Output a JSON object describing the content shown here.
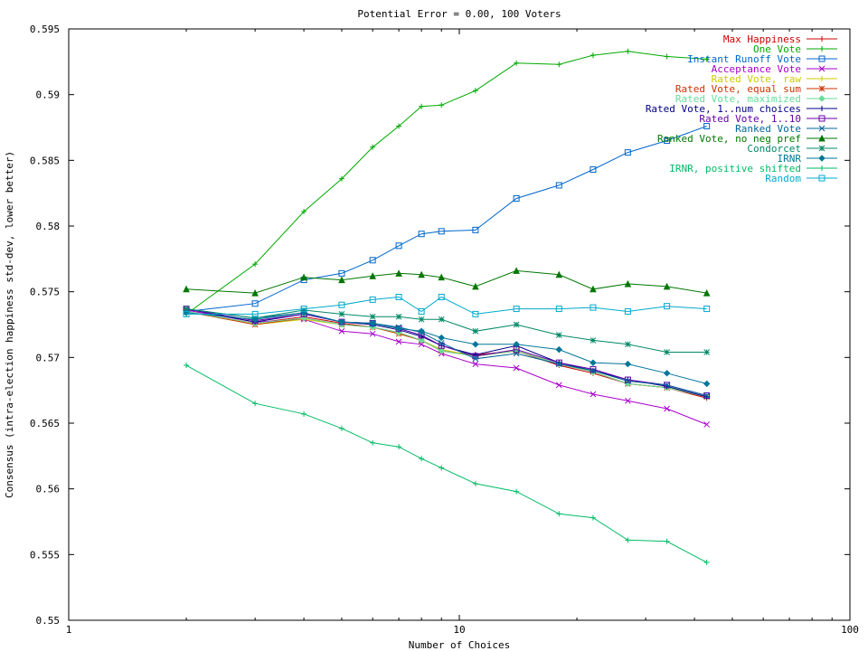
{
  "chart_data": {
    "type": "line",
    "title": "Potential Error = 0.00, 100 Voters",
    "xlabel": "Number of Choices",
    "ylabel": "Consensus (intra-election happiness std-dev, lower better)",
    "xscale": "log",
    "xlim": [
      1,
      100
    ],
    "ylim": [
      0.55,
      0.595
    ],
    "legend_position": "top-right",
    "grid": false,
    "x_ticks": [
      {
        "value": 1,
        "label": "1"
      },
      {
        "value": 10,
        "label": "10"
      },
      {
        "value": 100,
        "label": "100"
      }
    ],
    "y_ticks": [
      {
        "value": 0.55,
        "label": "0.55"
      },
      {
        "value": 0.555,
        "label": "0.555"
      },
      {
        "value": 0.56,
        "label": "0.56"
      },
      {
        "value": 0.565,
        "label": "0.565"
      },
      {
        "value": 0.57,
        "label": "0.57"
      },
      {
        "value": 0.575,
        "label": "0.575"
      },
      {
        "value": 0.58,
        "label": "0.58"
      },
      {
        "value": 0.585,
        "label": "0.585"
      },
      {
        "value": 0.59,
        "label": "0.59"
      },
      {
        "value": 0.595,
        "label": "0.595"
      }
    ],
    "x": [
      2,
      3,
      4,
      5,
      6,
      7,
      8,
      9,
      11,
      14,
      18,
      22,
      27,
      34,
      43
    ],
    "series": [
      {
        "name": "Max Happiness",
        "color": "#cc0000",
        "marker": "plus",
        "values": [
          0.5735,
          0.5726,
          0.5731,
          0.5726,
          0.5723,
          0.5719,
          0.5713,
          0.5705,
          0.5702,
          0.5705,
          0.5694,
          0.5688,
          0.568,
          0.5677,
          0.5669
        ]
      },
      {
        "name": "One Vote",
        "color": "#00aa00",
        "marker": "plus",
        "values": [
          0.5733,
          0.5771,
          0.5811,
          0.5836,
          0.586,
          0.5876,
          0.5891,
          0.5892,
          0.5903,
          0.5924,
          0.5923,
          0.593,
          0.5933,
          0.5929,
          0.5927
        ]
      },
      {
        "name": "Instant Runoff Vote",
        "color": "#0066cc",
        "marker": "square",
        "values": [
          0.5735,
          0.5741,
          0.5759,
          0.5764,
          0.5774,
          0.5785,
          0.5794,
          0.5796,
          0.5797,
          0.5821,
          0.5831,
          0.5843,
          0.5856,
          0.5865,
          0.5876
        ]
      },
      {
        "name": "Acceptance Vote",
        "color": "#aa00cc",
        "marker": "x",
        "values": [
          0.5736,
          0.5727,
          0.5729,
          0.572,
          0.5718,
          0.5712,
          0.571,
          0.5703,
          0.5695,
          0.5692,
          0.5679,
          0.5672,
          0.5667,
          0.5661,
          0.5649
        ]
      },
      {
        "name": "Rated Vote, raw",
        "color": "#cccc00",
        "marker": "plus",
        "values": [
          0.5735,
          0.5725,
          0.5729,
          0.5725,
          0.5723,
          0.5718,
          0.5713,
          0.5706,
          0.5701,
          0.5705,
          0.5695,
          0.5689,
          0.568,
          0.5677,
          0.567
        ]
      },
      {
        "name": "Rated Vote, equal sum",
        "color": "#cc3300",
        "marker": "star",
        "values": [
          0.5735,
          0.5725,
          0.573,
          0.5725,
          0.5723,
          0.5718,
          0.5713,
          0.5705,
          0.5701,
          0.5705,
          0.5695,
          0.5689,
          0.568,
          0.5677,
          0.567
        ]
      },
      {
        "name": "Rated Vote, maximized",
        "color": "#66dd99",
        "marker": "diamond",
        "values": [
          0.5735,
          0.5726,
          0.573,
          0.5725,
          0.5723,
          0.5719,
          0.5713,
          0.5705,
          0.5701,
          0.5705,
          0.5695,
          0.5689,
          0.568,
          0.5677,
          0.567
        ]
      },
      {
        "name": "Rated Vote, 1..num choices",
        "color": "#000088",
        "marker": "plus",
        "values": [
          0.5737,
          0.5727,
          0.5733,
          0.5727,
          0.5725,
          0.5721,
          0.5716,
          0.5709,
          0.5702,
          0.5709,
          0.5696,
          0.569,
          0.5683,
          0.5678,
          0.567
        ]
      },
      {
        "name": "Rated Vote, 1..10",
        "color": "#6600aa",
        "marker": "square",
        "values": [
          0.5737,
          0.5728,
          0.5733,
          0.5727,
          0.5726,
          0.5722,
          0.5717,
          0.5709,
          0.5701,
          0.5706,
          0.5696,
          0.5691,
          0.5683,
          0.5679,
          0.5671
        ]
      },
      {
        "name": "Ranked Vote",
        "color": "#006699",
        "marker": "x",
        "values": [
          0.5737,
          0.573,
          0.5734,
          0.5727,
          0.5726,
          0.5723,
          0.5719,
          0.5711,
          0.5699,
          0.5703,
          0.5695,
          0.569,
          0.5682,
          0.5679,
          0.5671
        ]
      },
      {
        "name": "Ranked Vote, no neg pref",
        "color": "#007700",
        "marker": "triangle",
        "values": [
          0.5752,
          0.5749,
          0.5761,
          0.5759,
          0.5762,
          0.5764,
          0.5763,
          0.5761,
          0.5754,
          0.5766,
          0.5763,
          0.5752,
          0.5756,
          0.5754,
          0.5749
        ]
      },
      {
        "name": "Condorcet",
        "color": "#008866",
        "marker": "star",
        "values": [
          0.5737,
          0.573,
          0.5736,
          0.5733,
          0.5731,
          0.5731,
          0.5729,
          0.5729,
          0.572,
          0.5725,
          0.5717,
          0.5713,
          0.571,
          0.5704,
          0.5704
        ]
      },
      {
        "name": "IRNR",
        "color": "#007799",
        "marker": "diamond",
        "values": [
          0.5734,
          0.5729,
          0.5734,
          0.5727,
          0.5726,
          0.5722,
          0.572,
          0.5715,
          0.571,
          0.571,
          0.5706,
          0.5696,
          0.5695,
          0.5688,
          0.568
        ]
      },
      {
        "name": "IRNR, positive shifted",
        "color": "#00bb66",
        "marker": "plus",
        "values": [
          0.5694,
          0.5665,
          0.5657,
          0.5646,
          0.5635,
          0.5632,
          0.5623,
          0.5616,
          0.5604,
          0.5598,
          0.5581,
          0.5578,
          0.5561,
          0.556,
          0.5544
        ]
      },
      {
        "name": "Random",
        "color": "#00aacc",
        "marker": "square",
        "values": [
          0.5733,
          0.5733,
          0.5737,
          0.574,
          0.5744,
          0.5746,
          0.5735,
          0.5746,
          0.5733,
          0.5737,
          0.5737,
          0.5738,
          0.5735,
          0.5739,
          0.5737
        ]
      }
    ]
  }
}
